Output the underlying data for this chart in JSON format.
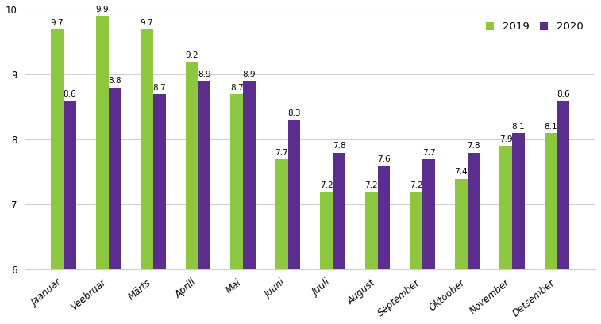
{
  "categories": [
    "Jaanuar",
    "Veebruar",
    "Märts",
    "Aprill",
    "Mai",
    "Juuni",
    "Juuli",
    "August",
    "September",
    "Oktoober",
    "November",
    "Detsember"
  ],
  "values_2019": [
    9.7,
    9.9,
    9.7,
    9.2,
    8.7,
    7.7,
    7.2,
    7.2,
    7.2,
    7.4,
    7.9,
    8.1
  ],
  "values_2020": [
    8.6,
    8.8,
    8.7,
    8.9,
    8.9,
    8.3,
    7.8,
    7.6,
    7.7,
    7.8,
    8.1,
    8.6
  ],
  "color_2019": "#8DC63F",
  "color_2020": "#5B2D8E",
  "legend_labels": [
    "2019",
    "2020"
  ],
  "ylim": [
    6,
    10
  ],
  "yticks": [
    6,
    7,
    8,
    9,
    10
  ],
  "bar_width": 0.28,
  "label_fontsize": 7.5,
  "tick_fontsize": 8.5,
  "legend_fontsize": 9.5,
  "background_color": "#ffffff",
  "grid_color": "#d0d0d0"
}
